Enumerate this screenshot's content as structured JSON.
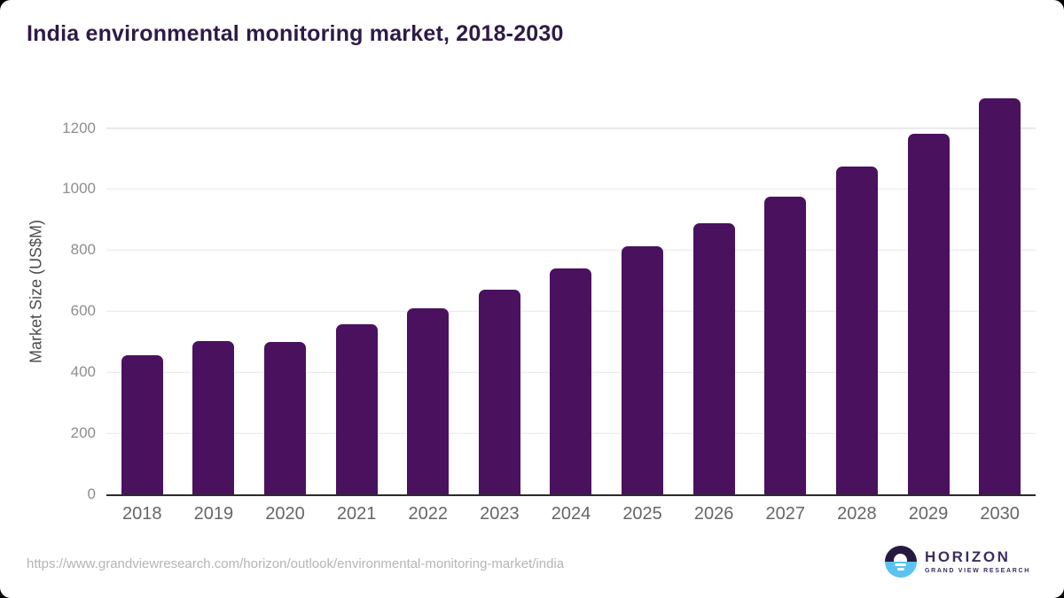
{
  "title": "India environmental monitoring market, 2018-2030",
  "footer": {
    "source_url": "https://www.grandviewresearch.com/horizon/outlook/environmental-monitoring-market/india",
    "logo": {
      "brand": "HORIZON",
      "tagline": "GRAND VIEW RESEARCH"
    }
  },
  "colors": {
    "bar": "#4A115E",
    "title_text": "#2E1A47",
    "axis": "#2b2b2b",
    "grid": "#e7e7e7",
    "ytick": "#8e8e8e",
    "xtick": "#666666",
    "ylabel": "#4d4d4d",
    "url": "#b5b5b5",
    "logo_navy": "#261A40",
    "logo_blue": "#5BC3EF",
    "brand": "#3B2D63"
  },
  "chart_data": {
    "type": "bar",
    "title": "India environmental monitoring market, 2018-2030",
    "categories": [
      "2018",
      "2019",
      "2020",
      "2021",
      "2022",
      "2023",
      "2024",
      "2025",
      "2026",
      "2027",
      "2028",
      "2029",
      "2030"
    ],
    "values": [
      455,
      503,
      500,
      556,
      610,
      671,
      739,
      812,
      889,
      976,
      1073,
      1181,
      1296
    ],
    "xlabel": "",
    "ylabel": "Market Size (US$M)",
    "yticks": [
      0,
      200,
      400,
      600,
      800,
      1000,
      1200
    ],
    "ylim": [
      0,
      1335
    ],
    "grid": true,
    "legend": false,
    "bar_color": "#4A115E",
    "units": "US$M"
  }
}
